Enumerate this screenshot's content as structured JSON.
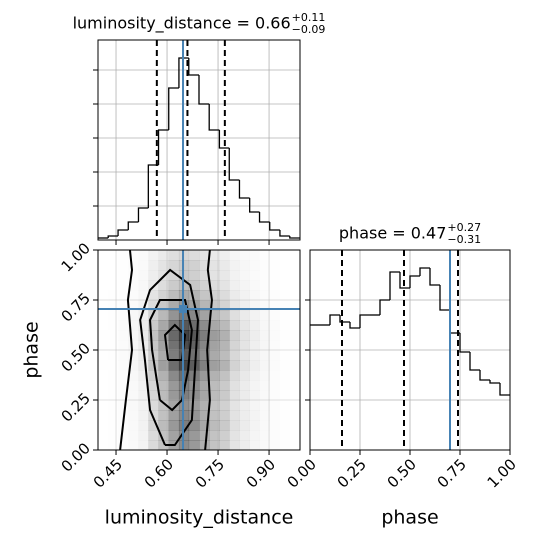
{
  "chart_data": [
    {
      "type": "histogram",
      "title": "luminosity_distance = 0.66",
      "title_upper": "+0.11",
      "title_lower": "−0.09",
      "bins": [
        0.397,
        0.427,
        0.456,
        0.486,
        0.516,
        0.545,
        0.575,
        0.605,
        0.635,
        0.664,
        0.694,
        0.724,
        0.754,
        0.783,
        0.813,
        0.843,
        0.872,
        0.902,
        0.932,
        0.961,
        0.991
      ],
      "values": [
        0.01,
        0.02,
        0.05,
        0.09,
        0.16,
        0.375,
        0.55,
        0.76,
        0.91,
        0.825,
        0.68,
        0.55,
        0.46,
        0.3,
        0.21,
        0.14,
        0.09,
        0.05,
        0.02,
        0.01
      ],
      "xlim": [
        0.397,
        0.991
      ],
      "ylim": [
        0,
        1
      ],
      "xticks": [
        0.45,
        0.6,
        0.75,
        0.9
      ],
      "yticks": [
        0.17,
        0.34,
        0.51,
        0.68,
        0.85
      ],
      "quantiles": [
        0.57,
        0.66,
        0.77
      ],
      "truth": 0.647,
      "color": "#000000",
      "truth_color": "#4682b4",
      "grid": true
    },
    {
      "type": "histogram",
      "title": "phase = 0.47",
      "title_upper": "+0.27",
      "title_lower": "−0.31",
      "xlabel": "phase",
      "bins": [
        0,
        0.05,
        0.1,
        0.15,
        0.2,
        0.25,
        0.3,
        0.35,
        0.4,
        0.45,
        0.5,
        0.55,
        0.6,
        0.65,
        0.7,
        0.75,
        0.8,
        0.85,
        0.9,
        0.95,
        1
      ],
      "values": [
        0.625,
        0.625,
        0.675,
        0.64,
        0.61,
        0.675,
        0.675,
        0.75,
        0.89,
        0.81,
        0.87,
        0.91,
        0.825,
        0.7,
        0.585,
        0.49,
        0.4,
        0.35,
        0.335,
        0.275
      ],
      "xlim": [
        0,
        1
      ],
      "ylim": [
        0,
        1
      ],
      "xticks": [
        {
          "value": 0,
          "label": "0.00"
        },
        0.25,
        {
          "value": 0.5,
          "label": "0.50"
        },
        0.75,
        {
          "value": 1,
          "label": "1.00"
        }
      ],
      "yticks": [
        0.25,
        0.5,
        0.75
      ],
      "quantiles": [
        0.16,
        0.47,
        0.74
      ],
      "truth": 0.7,
      "color": "#000000",
      "truth_color": "#4682b4",
      "grid": true
    },
    {
      "type": "hist2d",
      "xlabel": "luminosity_distance",
      "ylabel": "phase",
      "xlim": [
        0.397,
        0.991
      ],
      "ylim": [
        0,
        1
      ],
      "xticks": [
        0.45,
        {
          "value": 0.6,
          "label": "0.60"
        },
        0.75,
        {
          "value": 0.9,
          "label": "0.90"
        }
      ],
      "yticks": [
        {
          "value": 0,
          "label": "0.00"
        },
        0.25,
        {
          "value": 0.5,
          "label": "0.50"
        },
        0.75,
        {
          "value": 1,
          "label": "1.00"
        }
      ],
      "truth": [
        0.647,
        0.705
      ],
      "contours": [
        {
          "x": [
            0.462,
            0.479,
            0.497,
            0.485,
            0.497,
            0.491
          ],
          "y": [
            0,
            0.25,
            0.5,
            0.75,
            0.9,
            1
          ]
        },
        {
          "x": [
            0.712,
            0.726,
            0.718,
            0.732,
            0.72,
            0.726
          ],
          "y": [
            0,
            0.25,
            0.5,
            0.75,
            0.9,
            1
          ]
        },
        {
          "x": [
            0.594,
            0.55,
            0.535,
            0.521,
            0.55,
            0.609,
            0.668,
            0.691,
            0.682,
            0.673,
            0.623,
            0.594
          ],
          "y": [
            0.025,
            0.2,
            0.45,
            0.65,
            0.8,
            0.9,
            0.825,
            0.65,
            0.4,
            0.15,
            0.025,
            0.025
          ]
        },
        {
          "x": [
            0.579,
            0.556,
            0.55,
            0.579,
            0.653,
            0.673,
            0.662,
            0.644,
            0.615,
            0.579
          ],
          "y": [
            0.25,
            0.5,
            0.65,
            0.75,
            0.75,
            0.6,
            0.4,
            0.25,
            0.2,
            0.25
          ]
        },
        {
          "x": [
            0.603,
            0.594,
            0.623,
            0.653,
            0.644,
            0.603
          ],
          "y": [
            0.45,
            0.575,
            0.625,
            0.575,
            0.45,
            0.45
          ]
        }
      ],
      "color": "#000000",
      "truth_color": "#4682b4",
      "grid": true
    }
  ]
}
